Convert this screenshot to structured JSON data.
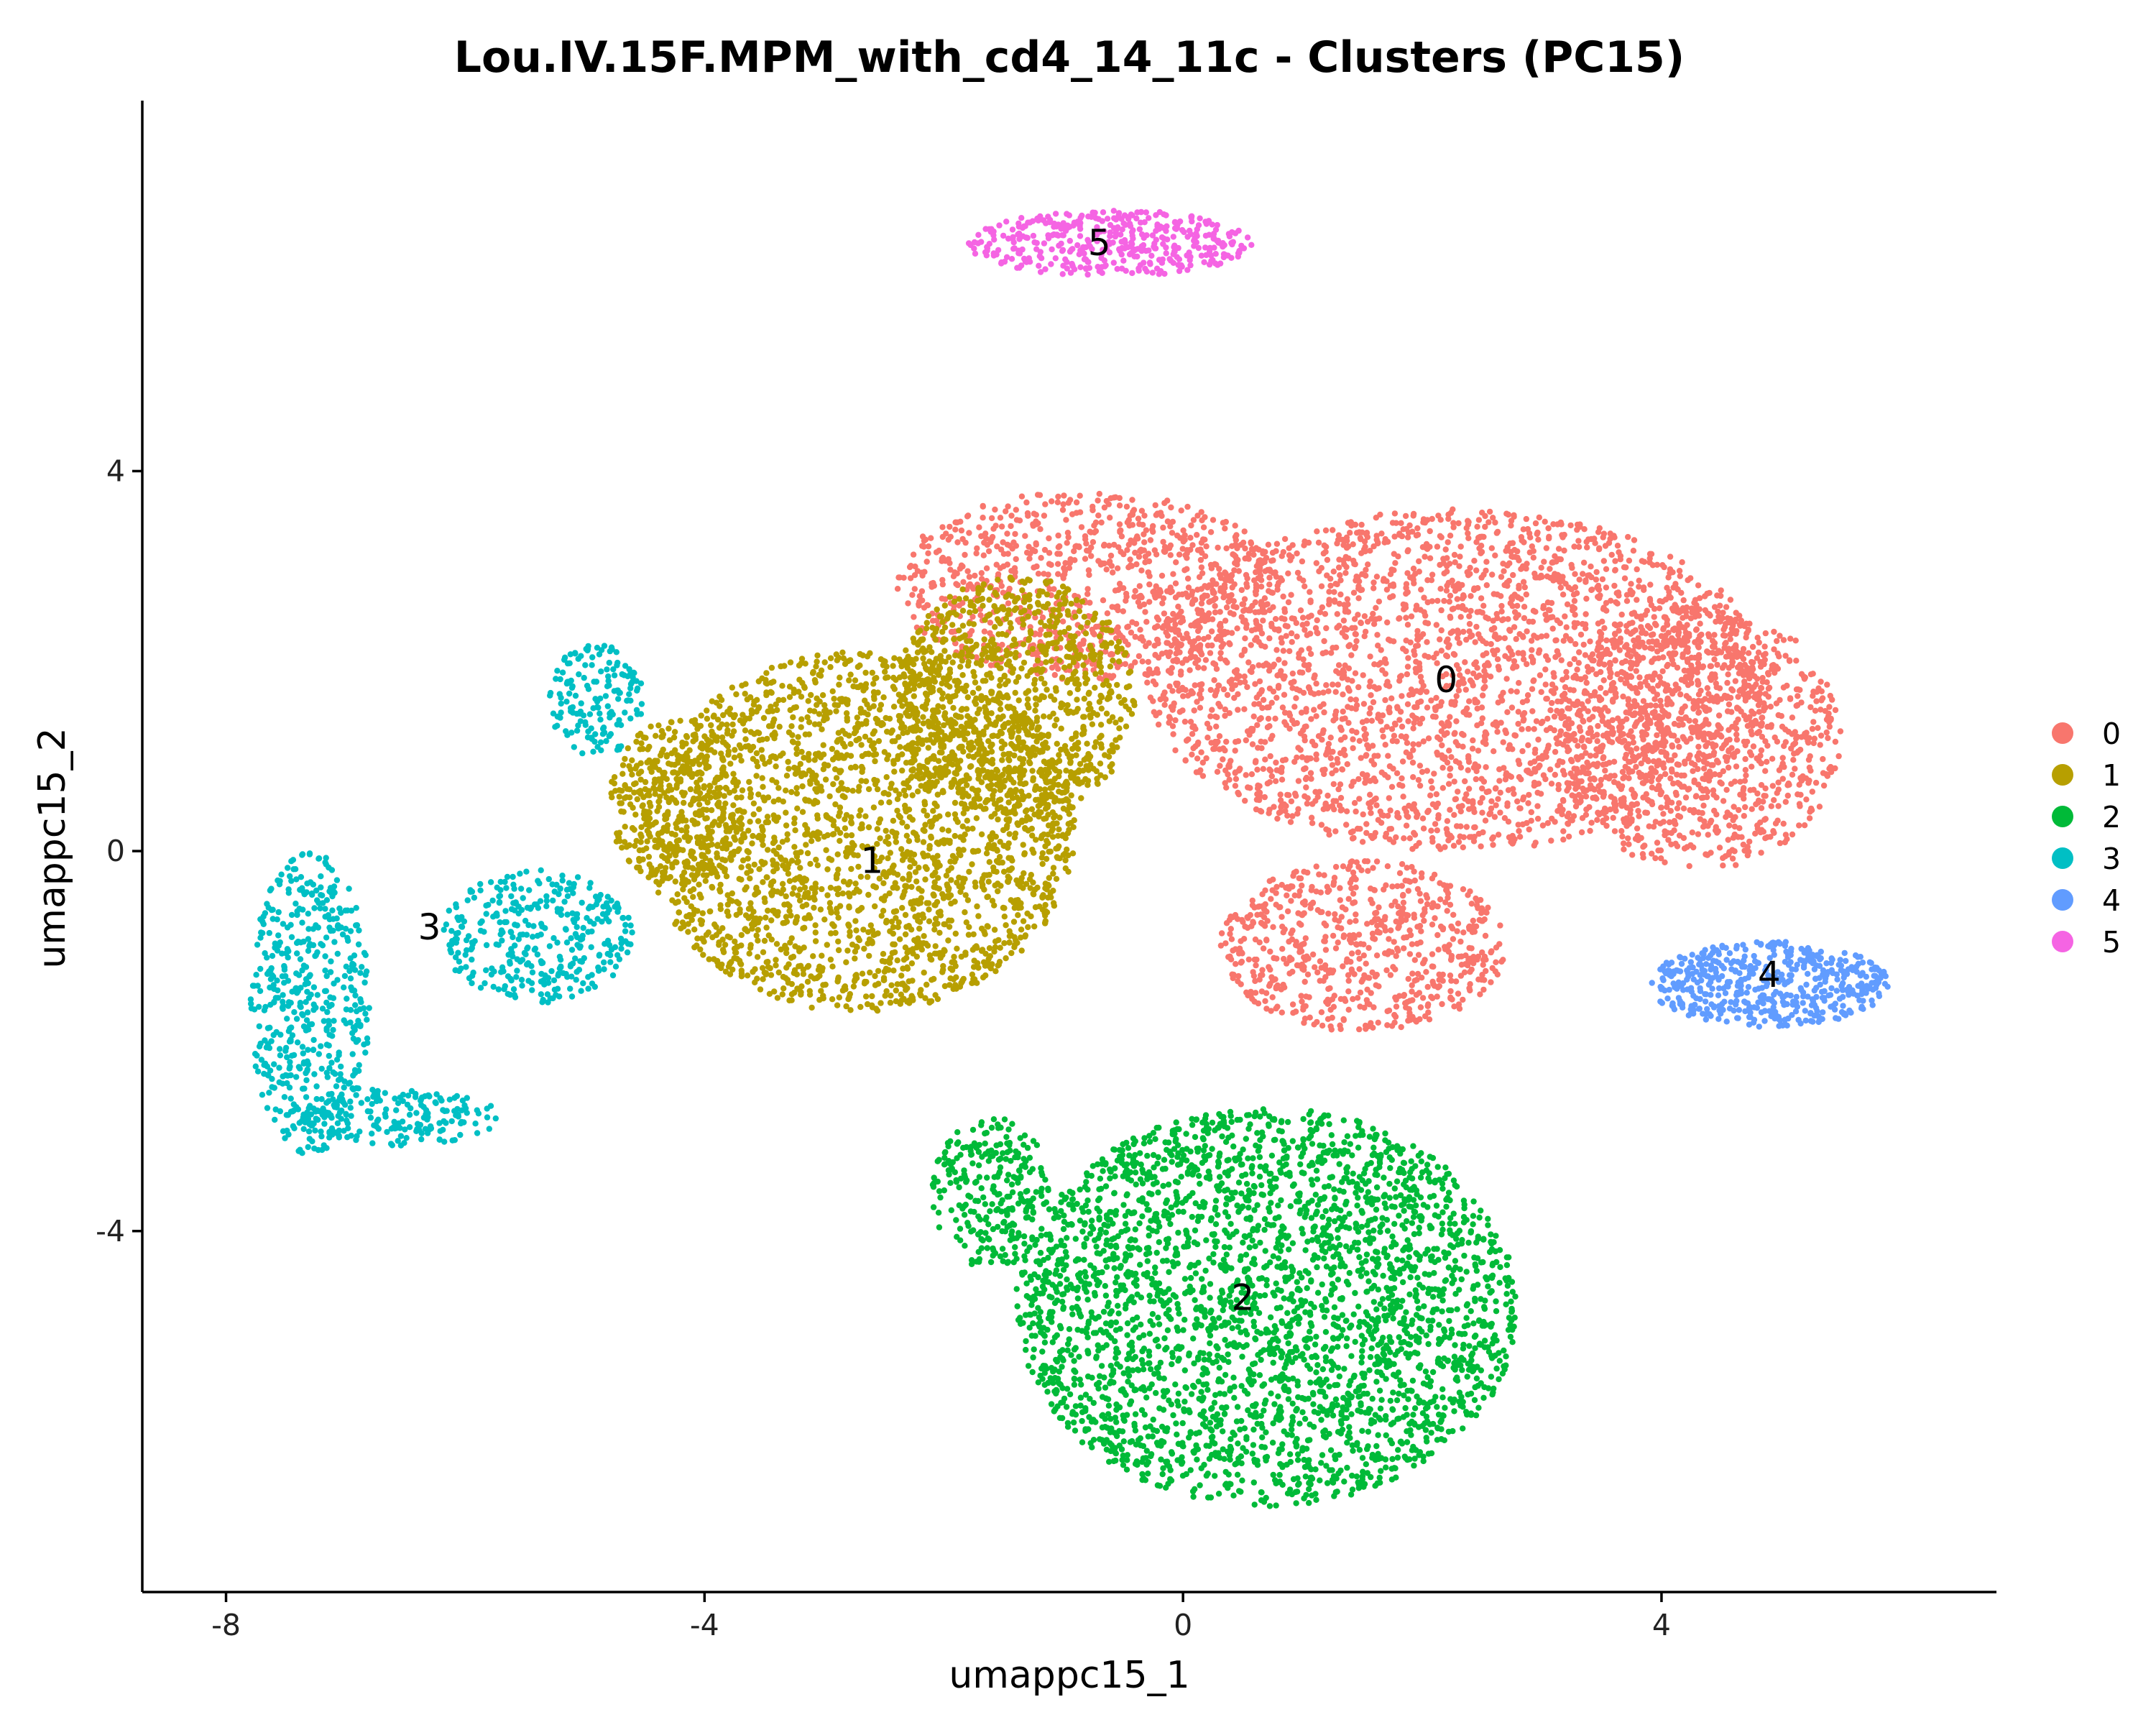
{
  "chart_data": {
    "type": "scatter",
    "title": "Lou.IV.15F.MPM_with_cd4_14_11c - Clusters (PC15)",
    "xlabel": "umappc15_1",
    "ylabel": "umappc15_2",
    "xlim": [
      -8.7,
      6.8
    ],
    "ylim": [
      -7.8,
      7.9
    ],
    "x_ticks": [
      -8,
      -4,
      0,
      4
    ],
    "x_tick_labels": [
      "-8",
      "-4",
      "0",
      "4"
    ],
    "y_ticks": [
      -4,
      0,
      4
    ],
    "y_tick_labels": [
      "-4",
      "0",
      "4"
    ],
    "grid": false,
    "legend_position": "right",
    "legend": [
      {
        "label": "0",
        "color": "#F8766D"
      },
      {
        "label": "1",
        "color": "#B79F00"
      },
      {
        "label": "2",
        "color": "#00BA38"
      },
      {
        "label": "3",
        "color": "#00BFC4"
      },
      {
        "label": "4",
        "color": "#619CFF"
      },
      {
        "label": "5",
        "color": "#F564E3"
      }
    ],
    "clusters": [
      {
        "label": "0",
        "color": "#F8766D",
        "label_pos": [
          2.2,
          1.8
        ],
        "approx_cells": 5200,
        "regions": [
          [
            2.3,
            1.8,
            2.6,
            1.8
          ],
          [
            4.3,
            1.2,
            1.2,
            1.4
          ],
          [
            -0.8,
            2.8,
            1.6,
            1.0
          ],
          [
            1.5,
            -1.0,
            1.2,
            0.9
          ]
        ]
      },
      {
        "label": "1",
        "color": "#B79F00",
        "label_pos": [
          -2.6,
          -0.1
        ],
        "approx_cells": 3600,
        "regions": [
          [
            -2.7,
            0.2,
            1.8,
            1.9
          ],
          [
            -1.4,
            1.6,
            1.0,
            1.3
          ],
          [
            -4.2,
            0.5,
            0.6,
            0.9
          ]
        ]
      },
      {
        "label": "2",
        "color": "#00BA38",
        "label_pos": [
          0.5,
          -4.7
        ],
        "approx_cells": 3300,
        "regions": [
          [
            0.7,
            -4.8,
            2.1,
            2.1
          ],
          [
            -1.6,
            -3.6,
            0.5,
            0.8
          ]
        ]
      },
      {
        "label": "3",
        "color": "#00BFC4",
        "label_pos": [
          -6.3,
          -0.8
        ],
        "approx_cells": 1200,
        "regions": [
          [
            -7.3,
            -1.6,
            0.5,
            1.6
          ],
          [
            -6.6,
            -2.8,
            0.9,
            0.3
          ],
          [
            -5.4,
            -0.9,
            0.8,
            0.7
          ],
          [
            -4.9,
            1.6,
            0.4,
            0.6
          ]
        ]
      },
      {
        "label": "4",
        "color": "#619CFF",
        "label_pos": [
          4.9,
          -1.3
        ],
        "approx_cells": 520,
        "regions": [
          [
            4.9,
            -1.4,
            1.0,
            0.45
          ]
        ]
      },
      {
        "label": "5",
        "color": "#F564E3",
        "label_pos": [
          -0.7,
          6.4
        ],
        "approx_cells": 420,
        "regions": [
          [
            -0.6,
            6.4,
            1.2,
            0.35
          ]
        ]
      }
    ]
  }
}
